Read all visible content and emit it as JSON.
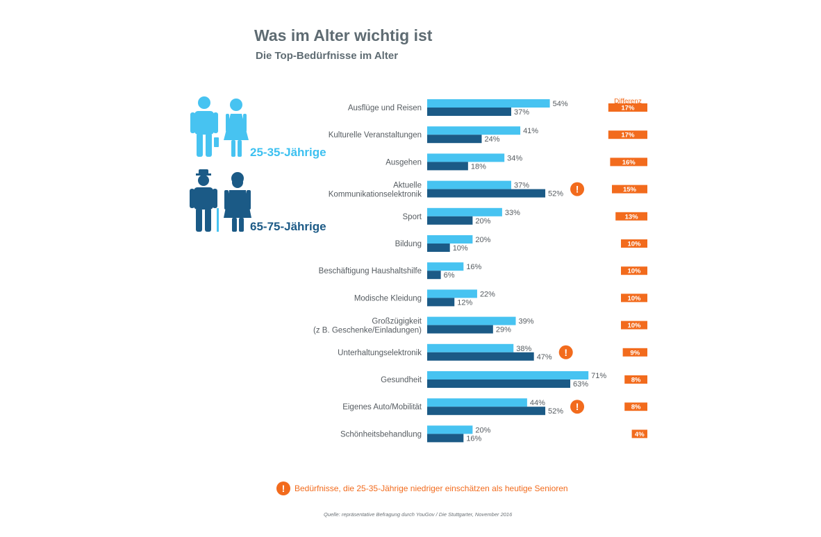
{
  "title": "Was im Alter wichtig ist",
  "subtitle": "Die Top-Bedürfnisse im Alter",
  "groups": {
    "young": "25-35-Jährige",
    "old": "65-75-Jährige"
  },
  "diff_header": "Differenz",
  "footnote": "Bedürfnisse, die 25-35-Jährige niedriger einschätzen als heutige Senioren",
  "source": "Quelle: repräsentative Befragung durch YouGov / Die Stuttgarter, November 2016",
  "colors": {
    "young": "#47c3f1",
    "old": "#1b5a86",
    "diff": "#f26b1d",
    "warn": "#f26b1d"
  },
  "chart_data": {
    "type": "bar",
    "orientation": "horizontal",
    "unit": "%",
    "categories": [
      [
        "Ausflüge und Reisen"
      ],
      [
        "Kulturelle Veranstaltungen"
      ],
      [
        "Ausgehen"
      ],
      [
        "Aktuelle",
        "Kommunikationselektronik"
      ],
      [
        "Sport"
      ],
      [
        "Bildung"
      ],
      [
        "Beschäftigung Haushaltshilfe"
      ],
      [
        "Modische Kleidung"
      ],
      [
        "Großzügigkeit",
        "(z B. Geschenke/Einladungen)"
      ],
      [
        "Unterhaltungselektronik"
      ],
      [
        "Gesundheit"
      ],
      [
        "Eigenes Auto/Mobilität"
      ],
      [
        "Schönheitsbehandlung"
      ]
    ],
    "series": [
      {
        "name": "25-35-Jährige",
        "values": [
          54,
          41,
          34,
          37,
          33,
          20,
          16,
          22,
          39,
          38,
          71,
          44,
          20
        ]
      },
      {
        "name": "65-75-Jährige",
        "values": [
          37,
          24,
          18,
          52,
          20,
          10,
          6,
          12,
          29,
          47,
          63,
          52,
          16
        ]
      }
    ],
    "difference": [
      17,
      17,
      16,
      15,
      13,
      10,
      10,
      10,
      10,
      9,
      8,
      8,
      4
    ],
    "flagged": [
      false,
      false,
      false,
      true,
      false,
      false,
      false,
      false,
      false,
      true,
      false,
      true,
      false
    ],
    "xlim": [
      0,
      75
    ]
  }
}
